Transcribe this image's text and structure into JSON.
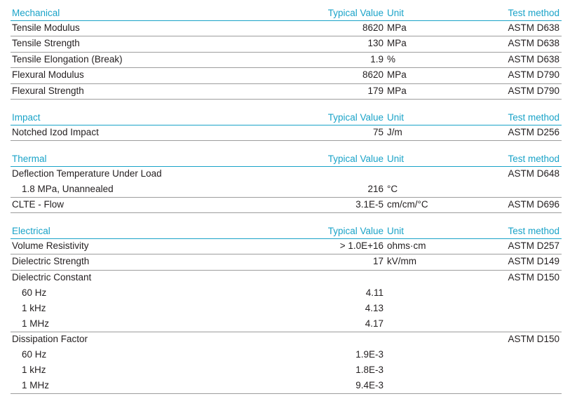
{
  "sections": {
    "mechanical": {
      "header": {
        "property": "Mechanical",
        "value": "Typical Value",
        "unit": "Unit",
        "test": "Test method"
      },
      "rows": [
        {
          "property": "Tensile Modulus",
          "value": "8620",
          "unit": "MPa",
          "test": "ASTM D638"
        },
        {
          "property": "Tensile Strength",
          "value": "130",
          "unit": "MPa",
          "test": "ASTM D638"
        },
        {
          "property": "Tensile Elongation (Break)",
          "value": "1.9",
          "unit": "%",
          "test": "ASTM D638"
        },
        {
          "property": "Flexural Modulus",
          "value": "8620",
          "unit": "MPa",
          "test": "ASTM D790"
        },
        {
          "property": "Flexural Strength",
          "value": "179",
          "unit": "MPa",
          "test": "ASTM D790"
        }
      ]
    },
    "impact": {
      "header": {
        "property": "Impact",
        "value": "Typical Value",
        "unit": "Unit",
        "test": "Test method"
      },
      "rows": [
        {
          "property": "Notched Izod Impact",
          "value": "75",
          "unit": "J/m",
          "test": "ASTM D256"
        }
      ]
    },
    "thermal": {
      "header": {
        "property": "Thermal",
        "value": "Typical Value",
        "unit": "Unit",
        "test": "Test method"
      },
      "rows": [
        {
          "property": "Deflection Temperature Under Load",
          "value": "",
          "unit": "",
          "test": "ASTM D648"
        },
        {
          "property": "1.8 MPa, Unannealed",
          "value": "216",
          "unit": "°C",
          "test": ""
        },
        {
          "property": "CLTE - Flow",
          "value": "3.1E-5",
          "unit": "cm/cm/°C",
          "test": "ASTM D696"
        }
      ]
    },
    "electrical": {
      "header": {
        "property": "Electrical",
        "value": "Typical Value",
        "unit": "Unit",
        "test": "Test method"
      },
      "rows": [
        {
          "property": "Volume Resistivity",
          "value": "> 1.0E+16",
          "unit": "ohms·cm",
          "test": "ASTM D257"
        },
        {
          "property": "Dielectric Strength",
          "value": "17",
          "unit": "kV/mm",
          "test": "ASTM D149"
        },
        {
          "property": "Dielectric Constant",
          "value": "",
          "unit": "",
          "test": "ASTM D150"
        },
        {
          "property": "60 Hz",
          "value": "4.11",
          "unit": "",
          "test": ""
        },
        {
          "property": "1 kHz",
          "value": "4.13",
          "unit": "",
          "test": ""
        },
        {
          "property": "1 MHz",
          "value": "4.17",
          "unit": "",
          "test": ""
        },
        {
          "property": "Dissipation Factor",
          "value": "",
          "unit": "",
          "test": "ASTM D150"
        },
        {
          "property": "60 Hz",
          "value": "1.9E-3",
          "unit": "",
          "test": ""
        },
        {
          "property": "1 kHz",
          "value": "1.8E-3",
          "unit": "",
          "test": ""
        },
        {
          "property": "1 MHz",
          "value": "9.4E-3",
          "unit": "",
          "test": ""
        }
      ]
    }
  },
  "colors": {
    "accent": "#1aa3c8",
    "text": "#231f20",
    "rule": "#9d9d9d"
  }
}
